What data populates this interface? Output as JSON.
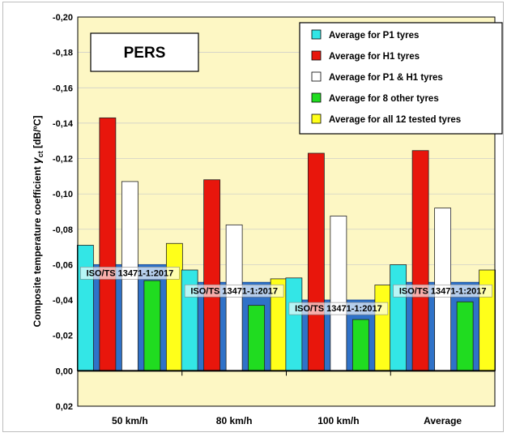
{
  "chart_data": {
    "type": "bar",
    "title": "PERS",
    "ylabel_main": "Composite temperature coefficient",
    "ylabel_symbol": "γ",
    "ylabel_subscript": "ct",
    "ylabel_unit": "[dB/ºC]",
    "y_inverted": true,
    "ylim": [
      0.02,
      -0.2
    ],
    "yticks": [
      "-0,20",
      "-0,18",
      "-0,16",
      "-0,14",
      "-0,12",
      "-0,10",
      "-0,08",
      "-0,06",
      "-0,04",
      "-0,02",
      "0,00",
      "0,02"
    ],
    "ytick_values": [
      -0.2,
      -0.18,
      -0.16,
      -0.14,
      -0.12,
      -0.1,
      -0.08,
      -0.06,
      -0.04,
      -0.02,
      0.0,
      0.02
    ],
    "categories": [
      "50 km/h",
      "80 km/h",
      "100 km/h",
      "Average"
    ],
    "series": [
      {
        "name": "Average for P1 tyres",
        "color": "#33e6e6",
        "values": [
          -0.071,
          -0.057,
          -0.0525,
          -0.06
        ]
      },
      {
        "name": "Average for H1 tyres",
        "color": "#e8160c",
        "values": [
          -0.143,
          -0.108,
          -0.123,
          -0.1245
        ]
      },
      {
        "name": "Average for P1 & H1 tyres",
        "color": "#ffffff",
        "values": [
          -0.107,
          -0.0825,
          -0.0875,
          -0.092
        ]
      },
      {
        "name": "Average for 8 other tyres",
        "color": "#20dc20",
        "values": [
          -0.051,
          -0.037,
          -0.029,
          -0.039
        ]
      },
      {
        "name": "Average for all 12 tested tyres",
        "color": "#ffff1a",
        "values": [
          -0.072,
          -0.052,
          -0.0485,
          -0.057
        ]
      }
    ],
    "reference": {
      "label": "ISO/TS 13471-1:2017",
      "color": "#2f72c8",
      "values": [
        -0.06,
        -0.05,
        -0.04,
        -0.05
      ]
    },
    "legend_position": "top-right",
    "grid": true,
    "plot_background": "#fdf7c4"
  }
}
